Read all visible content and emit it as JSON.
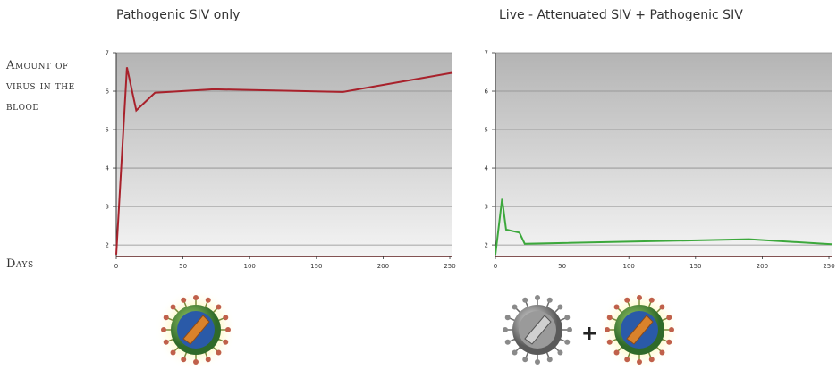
{
  "labels": {
    "ylabel": "Amount of virus in the blood",
    "xlabel": "Days"
  },
  "icons": {
    "pathogenic": "pathogenic-siv-virus-icon",
    "attenuated": "attenuated-siv-virus-icon",
    "plus": "+"
  },
  "colors": {
    "pathogenic_line": "#a8212b",
    "attenuated_line": "#3ca83c"
  },
  "chart_data": [
    {
      "type": "line",
      "title": "Pathogenic SIV only",
      "xlabel": "",
      "ylabel": "",
      "xlim": [
        0,
        252
      ],
      "ylim": [
        1.7,
        7
      ],
      "x_ticks": [
        0,
        50,
        100,
        150,
        200,
        250
      ],
      "y_ticks": [
        2,
        3,
        4,
        5,
        6,
        7
      ],
      "grid": true,
      "series": [
        {
          "x": [
            0,
            8,
            15,
            29,
            73,
            170,
            252
          ],
          "y": [
            1.75,
            6.62,
            5.5,
            5.96,
            6.05,
            5.98,
            6.48
          ]
        }
      ]
    },
    {
      "type": "line",
      "title": "Live - Attenuated SIV + Pathogenic SIV",
      "xlabel": "",
      "ylabel": "",
      "xlim": [
        0,
        252
      ],
      "ylim": [
        1.7,
        7
      ],
      "x_ticks": [
        0,
        50,
        100,
        150,
        200,
        250
      ],
      "y_ticks": [
        2,
        3,
        4,
        5,
        6,
        7
      ],
      "grid": true,
      "series": [
        {
          "x": [
            0,
            5,
            8,
            18,
            22,
            190,
            252
          ],
          "y": [
            1.75,
            3.2,
            2.4,
            2.32,
            2.03,
            2.15,
            2.02
          ]
        }
      ]
    }
  ]
}
